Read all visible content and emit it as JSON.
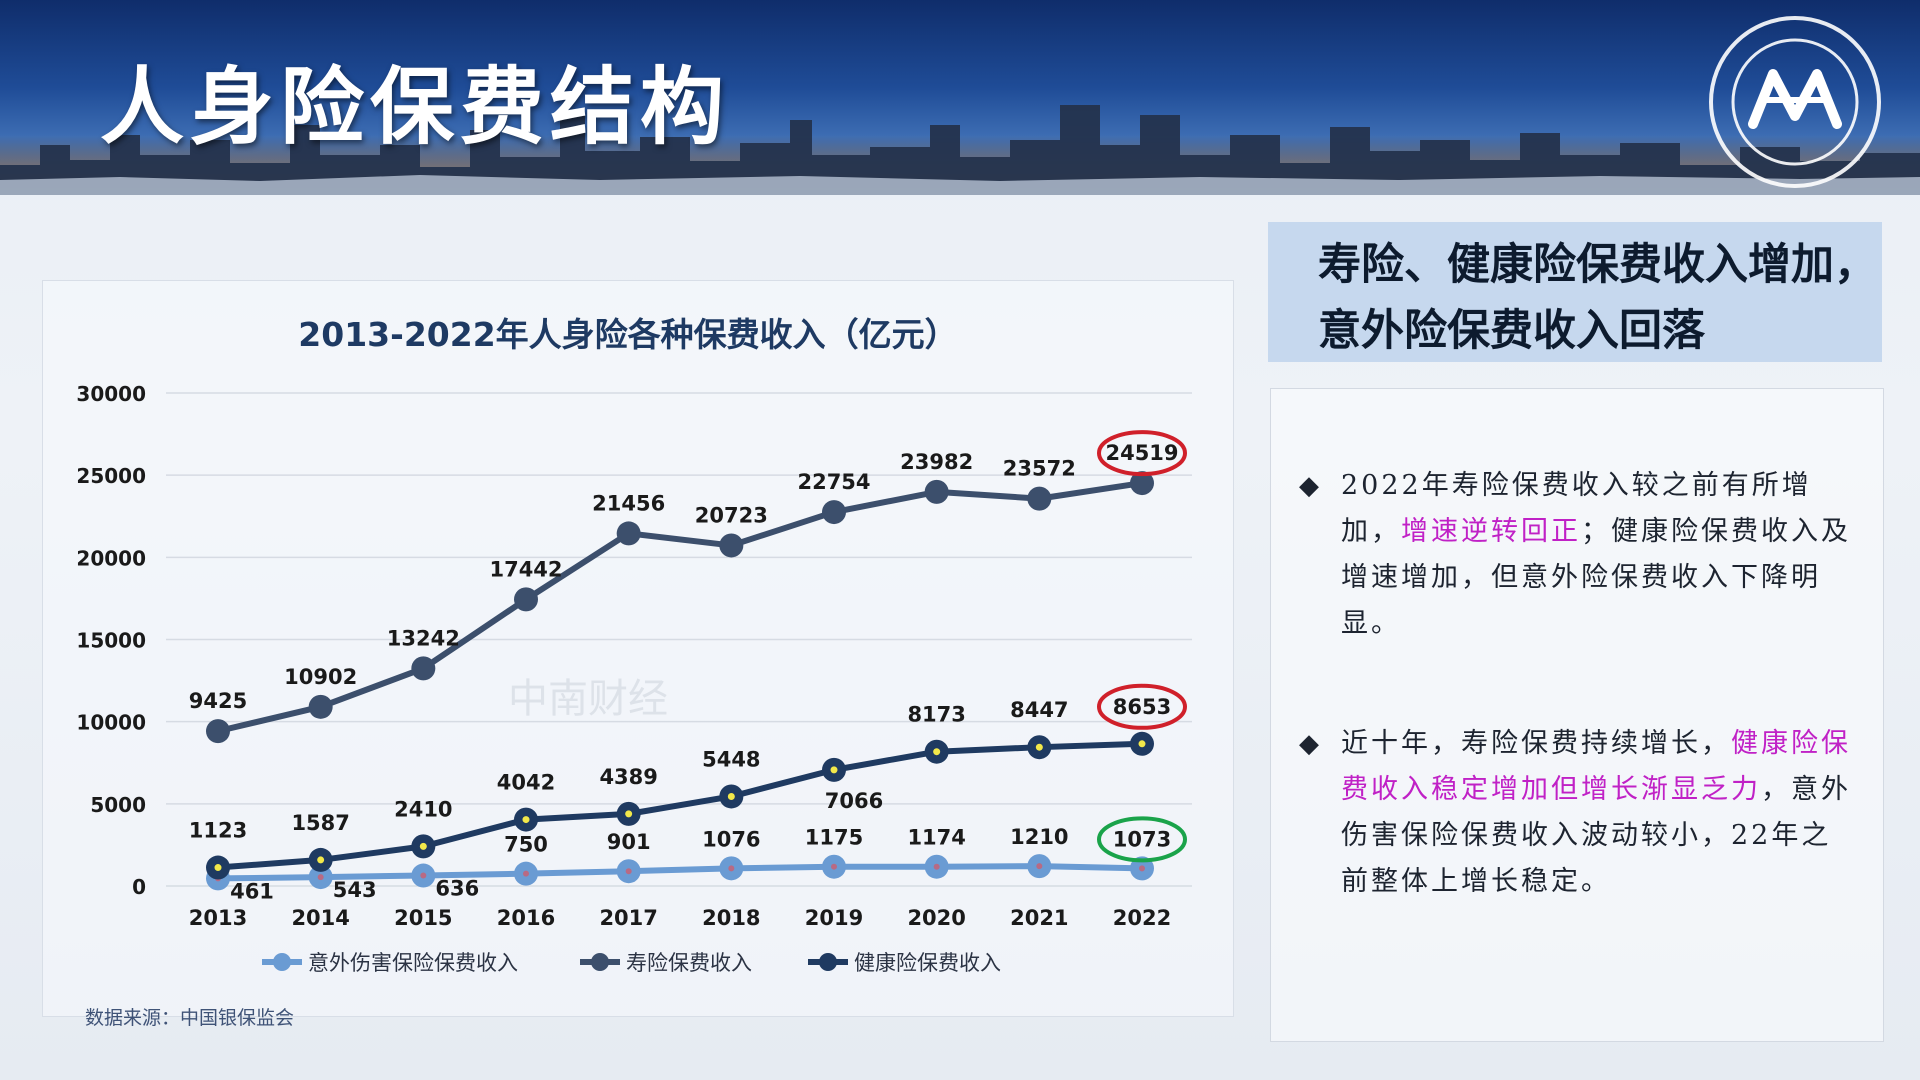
{
  "header": {
    "title": "人身险保费结构"
  },
  "chart_data": {
    "type": "line",
    "title": "2013-2022年人身险各种保费收入（亿元）",
    "x": [
      "2013",
      "2014",
      "2015",
      "2016",
      "2017",
      "2018",
      "2019",
      "2020",
      "2021",
      "2022"
    ],
    "ylim": [
      0,
      30000
    ],
    "yticks": [
      "0",
      "5000",
      "10000",
      "15000",
      "20000",
      "25000",
      "30000"
    ],
    "grid": true,
    "legend_position": "bottom",
    "series": [
      {
        "name": "意外伤害保险保费收入",
        "color": "#6a9bd3",
        "values": [
          461,
          543,
          636,
          750,
          901,
          1076,
          1175,
          1174,
          1210,
          1073
        ],
        "labels": [
          "461",
          "543",
          "636",
          "750",
          "901",
          "1076",
          "1175",
          "1174",
          "1210",
          "1073"
        ]
      },
      {
        "name": "寿险保费收入",
        "color": "#3c4f6c",
        "values": [
          9425,
          10902,
          13242,
          17442,
          21456,
          20723,
          22754,
          23982,
          23572,
          24519
        ],
        "labels": [
          "9425",
          "10902",
          "13242",
          "17442",
          "21456",
          "20723",
          "22754",
          "23982",
          "23572",
          "24519"
        ]
      },
      {
        "name": "健康险保费收入",
        "color": "#1f3a61",
        "values": [
          1123,
          1587,
          2410,
          4042,
          4389,
          5448,
          7066,
          8173,
          8447,
          8653
        ],
        "labels": [
          "1123",
          "1587",
          "2410",
          "4042",
          "4389",
          "5448",
          "7066",
          "8173",
          "8447",
          "8653"
        ]
      }
    ],
    "circled_labels": [
      {
        "series": 1,
        "index": 9,
        "color": "#d0202a"
      },
      {
        "series": 2,
        "index": 9,
        "color": "#d0202a"
      },
      {
        "series": 0,
        "index": 9,
        "color": "#1aa34a"
      }
    ],
    "watermark": "中南财经"
  },
  "source": "数据来源：中国银保监会",
  "headline": "寿险、健康险保费收入增加，意外险保费收入回落",
  "bullets": [
    {
      "mark": "◆",
      "parts": [
        {
          "text": "2022年寿险保费收入较之前有所增加，",
          "hl": false
        },
        {
          "text": "增速逆转回正",
          "hl": true
        },
        {
          "text": "；健康险保费收入及增速增加，但意外险保费收入下降明显。",
          "hl": false
        }
      ]
    },
    {
      "mark": "◆",
      "parts": [
        {
          "text": "近十年，寿险保费持续增长，",
          "hl": false
        },
        {
          "text": "健康险保费收入稳定增加但增长渐显乏力",
          "hl": true
        },
        {
          "text": "，意外伤害保险保费收入波动较小，22年之前整体上增长稳定。",
          "hl": false
        }
      ]
    }
  ],
  "colors": {
    "accent_pink": "#c021c6",
    "circle_red": "#d0202a",
    "circle_green": "#1aa34a"
  }
}
